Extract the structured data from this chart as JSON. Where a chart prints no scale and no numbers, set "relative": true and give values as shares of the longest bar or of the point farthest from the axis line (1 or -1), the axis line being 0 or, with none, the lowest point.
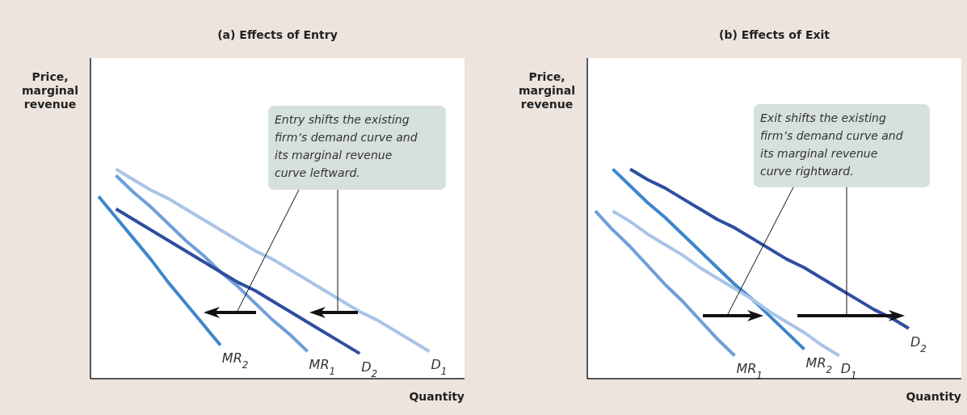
{
  "chart_data": [
    {
      "type": "line",
      "title": "(a) Effects of Entry",
      "xlabel": "Quantity",
      "ylabel": "Price, marginal revenue",
      "relative": true,
      "tick_labels": false,
      "categories": [
        null,
        null,
        null,
        null,
        null,
        null,
        null,
        null,
        null,
        null,
        null,
        null,
        null,
        null,
        null,
        null,
        null,
        null,
        null,
        null,
        null
      ],
      "annotations": [
        "Entry shifts the existing firm’s demand curve and its marginal revenue curve leftward."
      ],
      "series": [
        {
          "name": "D$_{1}$",
          "color": "#a9c4e8",
          "values": [
            null,
            1,
            0.95,
            0.9,
            0.86,
            0.81,
            0.76,
            0.71,
            0.66,
            0.61,
            0.57,
            0.52,
            0.47,
            0.42,
            0.37,
            0.32,
            0.28,
            0.23,
            0.18,
            0.13,
            null
          ]
        },
        {
          "name": "MR$_{1}$",
          "color": "#6f9fd8",
          "values": [
            null,
            0.97,
            0.89,
            0.82,
            0.74,
            0.66,
            0.59,
            0.51,
            0.44,
            0.36,
            0.28,
            0.21,
            0.13,
            null,
            null,
            null,
            null,
            null,
            null,
            null,
            null
          ]
        },
        {
          "name": "D$_{2}$",
          "color": "#2e4ea0",
          "values": [
            null,
            0.81,
            0.76,
            0.71,
            0.66,
            0.61,
            0.56,
            0.51,
            0.46,
            0.42,
            0.37,
            0.32,
            0.27,
            0.22,
            0.17,
            0.12,
            null,
            null,
            null,
            null,
            null
          ]
        },
        {
          "name": "MR$_{2}$",
          "color": "#3f87cb",
          "values": [
            0.87,
            0.77,
            0.67,
            0.57,
            0.46,
            0.36,
            0.26,
            0.16,
            null,
            null,
            null,
            null,
            null,
            null,
            null,
            null,
            null,
            null,
            null,
            null,
            null
          ]
        }
      ]
    },
    {
      "type": "line",
      "title": "(b) Effects of Exit",
      "xlabel": "Quantity",
      "ylabel": "Price, marginal revenue",
      "relative": true,
      "tick_labels": false,
      "categories": [
        null,
        null,
        null,
        null,
        null,
        null,
        null,
        null,
        null,
        null,
        null,
        null,
        null,
        null,
        null,
        null,
        null,
        null,
        null,
        null,
        null
      ],
      "annotations": [
        "Exit shifts the existing firm’s demand curve and its marginal revenue curve rightward."
      ],
      "series": [
        {
          "name": "D$_{2}$",
          "color": "#2e4ea0",
          "values": [
            null,
            null,
            1,
            0.95,
            0.91,
            0.86,
            0.81,
            0.76,
            0.72,
            0.67,
            0.62,
            0.57,
            0.53,
            0.48,
            0.43,
            0.38,
            0.33,
            0.29,
            0.24,
            null,
            null
          ]
        },
        {
          "name": "MR$_{2}$",
          "color": "#3d86cc",
          "values": [
            null,
            1,
            0.92,
            0.84,
            0.77,
            0.69,
            0.61,
            0.53,
            0.45,
            0.38,
            0.3,
            0.22,
            0.14,
            null,
            null,
            null,
            null,
            null,
            null,
            null,
            null
          ]
        },
        {
          "name": "D$_{1}$",
          "color": "#a9c4e8",
          "values": [
            null,
            0.8,
            0.75,
            0.69,
            0.64,
            0.59,
            0.53,
            0.48,
            0.43,
            0.38,
            0.32,
            0.27,
            0.22,
            0.16,
            0.11,
            null,
            null,
            null,
            null,
            null,
            null
          ]
        },
        {
          "name": "MR$_{1}$",
          "color": "#6f9fd8",
          "values": [
            0.8,
            0.71,
            0.63,
            0.54,
            0.45,
            0.37,
            0.28,
            0.19,
            0.11,
            null,
            null,
            null,
            null,
            null,
            null,
            null,
            null,
            null,
            null,
            null,
            null
          ]
        }
      ]
    }
  ]
}
